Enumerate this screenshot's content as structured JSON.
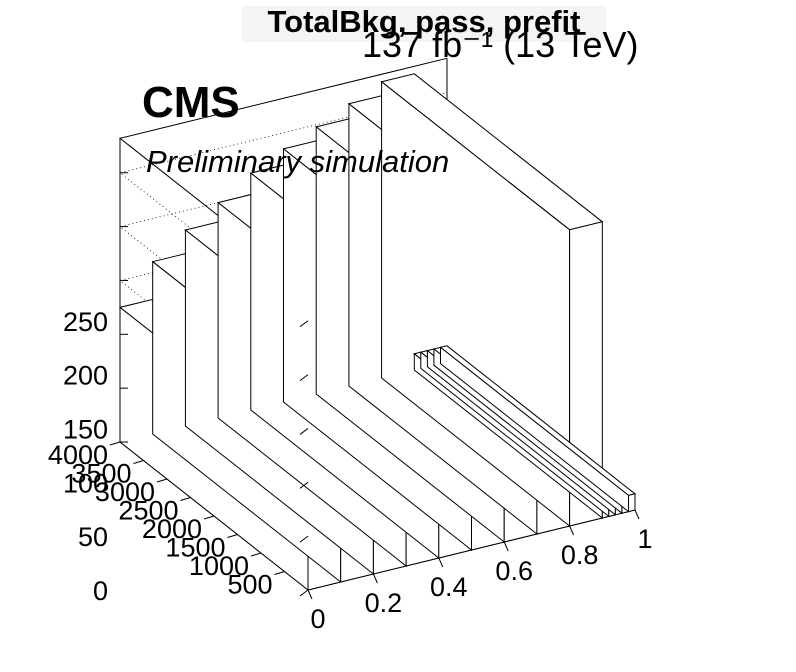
{
  "title": "TotalBkg, pass, prefit",
  "lumi_label": "137 fb⁻¹ (13 TeV)",
  "cms_label": "CMS",
  "prelim_label": "Preliminary simulation",
  "chart_data": {
    "type": "lego3d",
    "title": "TotalBkg, pass, prefit",
    "x_axis": {
      "range": [
        0,
        1
      ],
      "ticks": [
        "0",
        "0.2",
        "0.4",
        "0.6",
        "0.8",
        "1"
      ]
    },
    "y_axis": {
      "range": [
        0,
        4000
      ],
      "ticks": [
        "500",
        "1000",
        "1500",
        "2000",
        "2500",
        "3000",
        "3500",
        "4000"
      ]
    },
    "z_axis": {
      "range": [
        0,
        260
      ],
      "ticks": [
        "0",
        "50",
        "100",
        "150",
        "200",
        "250"
      ]
    },
    "x_bins": [
      {
        "x": [
          0.0,
          0.1
        ],
        "z": 125
      },
      {
        "x": [
          0.1,
          0.2
        ],
        "z": 160
      },
      {
        "x": [
          0.2,
          0.3
        ],
        "z": 182
      },
      {
        "x": [
          0.3,
          0.4
        ],
        "z": 200
      },
      {
        "x": [
          0.4,
          0.5
        ],
        "z": 220
      },
      {
        "x": [
          0.5,
          0.6
        ],
        "z": 235
      },
      {
        "x": [
          0.6,
          0.7
        ],
        "z": 248
      },
      {
        "x": [
          0.7,
          0.8
        ],
        "z": 262
      },
      {
        "x": [
          0.8,
          0.9
        ],
        "z": 275
      },
      {
        "x": [
          0.9,
          0.92
        ],
        "z": 15
      },
      {
        "x": [
          0.92,
          0.94
        ],
        "z": 15
      },
      {
        "x": [
          0.94,
          0.96
        ],
        "z": 15
      },
      {
        "x": [
          0.96,
          0.98
        ],
        "z": 15
      },
      {
        "x": [
          0.98,
          1.0
        ],
        "z": 15
      }
    ]
  }
}
